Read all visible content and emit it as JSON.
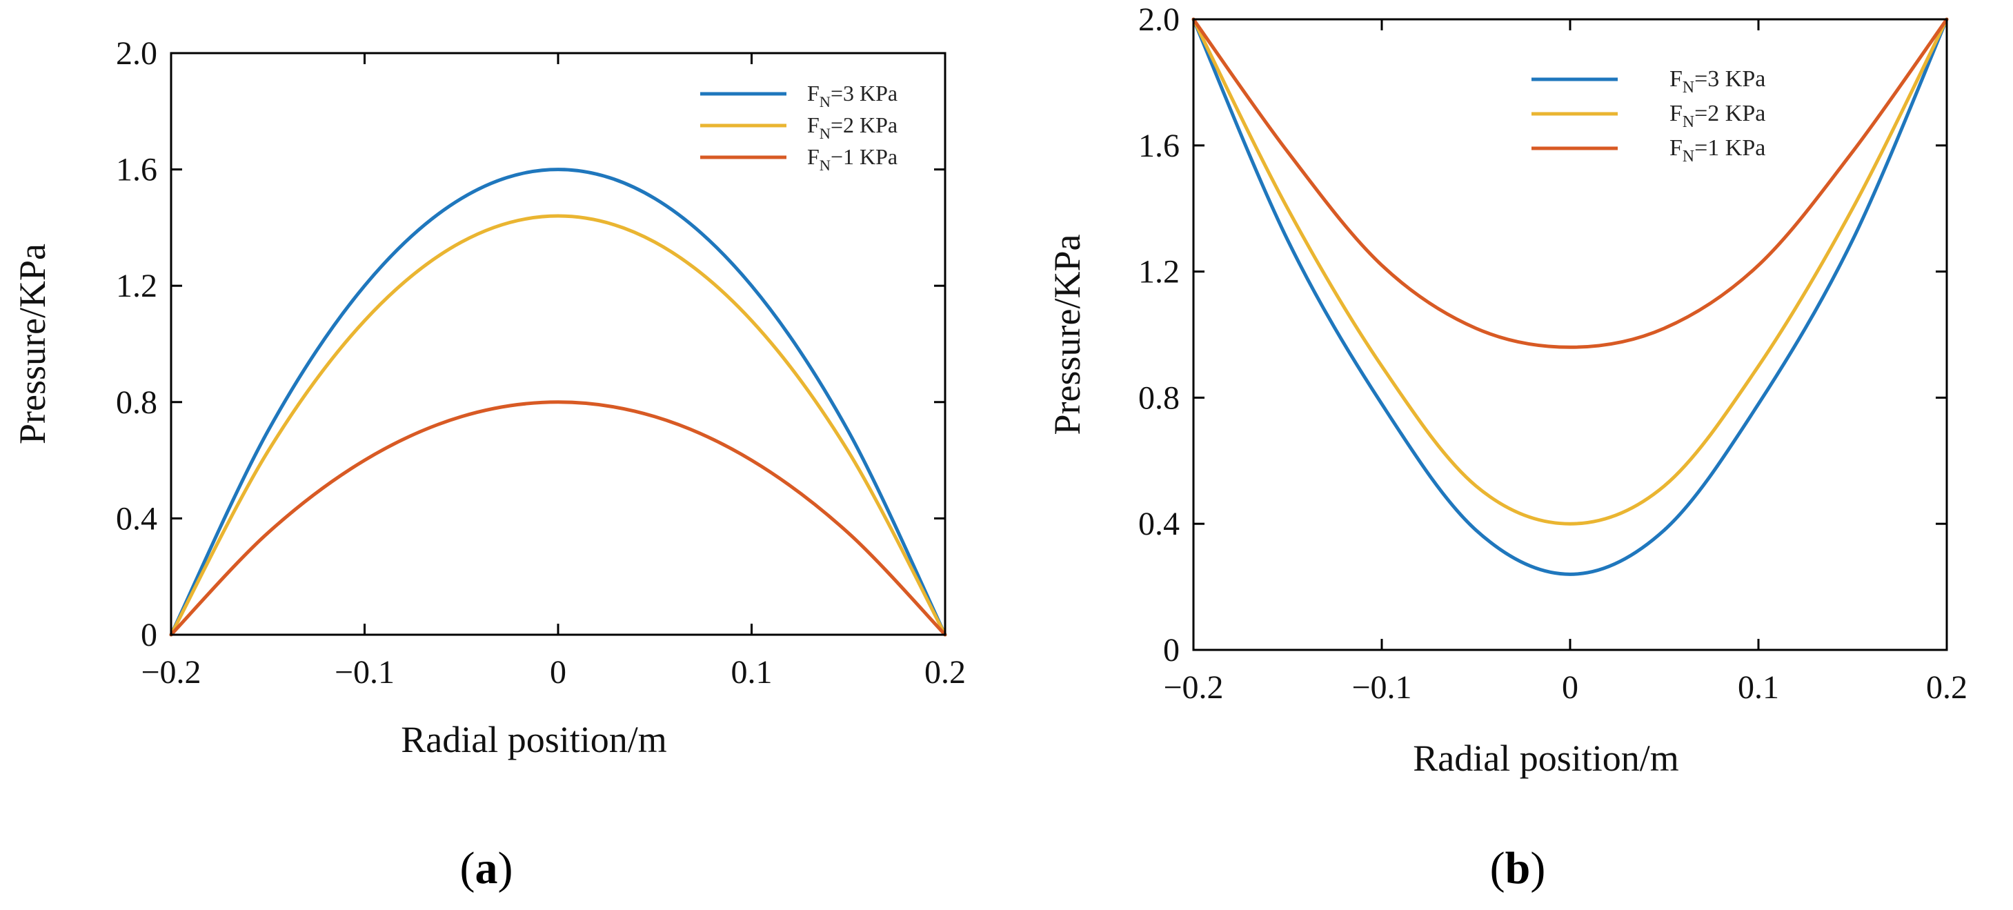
{
  "chart_data": [
    {
      "id": "a",
      "type": "line",
      "panel_label_open": "(",
      "panel_label_letter": "a",
      "panel_label_close": ")",
      "title": "",
      "xlabel": "Radial position/m",
      "ylabel": "Pressure/KPa",
      "xlim": [
        -0.2,
        0.2
      ],
      "ylim": [
        0,
        2.0
      ],
      "xticks": [
        -0.2,
        -0.1,
        0,
        0.1,
        0.2
      ],
      "xtick_labels": [
        "−0.2",
        "−0.1",
        "0",
        "0.1",
        "0.2"
      ],
      "yticks": [
        0,
        0.4,
        0.8,
        1.2,
        1.6,
        2.0
      ],
      "ytick_labels": [
        "0",
        "0.4",
        "0.8",
        "1.2",
        "1.6",
        "2.0"
      ],
      "grid": false,
      "legend_position": "top-right",
      "series": [
        {
          "name_main": "F",
          "name_sub": "N",
          "name_rest": "=3 KPa",
          "color": "#1f77bd",
          "x": [
            -0.2,
            -0.15,
            -0.1,
            -0.05,
            0,
            0.05,
            0.1,
            0.15,
            0.2
          ],
          "y": [
            0,
            0.7,
            1.2,
            1.5,
            1.6,
            1.5,
            1.2,
            0.7,
            0
          ]
        },
        {
          "name_main": "F",
          "name_sub": "N",
          "name_rest": "=2 KPa",
          "color": "#eab531",
          "x": [
            -0.2,
            -0.15,
            -0.1,
            -0.05,
            0,
            0.05,
            0.1,
            0.15,
            0.2
          ],
          "y": [
            0,
            0.63,
            1.08,
            1.35,
            1.44,
            1.35,
            1.08,
            0.63,
            0
          ]
        },
        {
          "name_main": "F",
          "name_sub": "N",
          "name_rest": "−1 KPa",
          "color": "#d85a24",
          "x": [
            -0.2,
            -0.15,
            -0.1,
            -0.05,
            0,
            0.05,
            0.1,
            0.15,
            0.2
          ],
          "y": [
            0,
            0.35,
            0.6,
            0.75,
            0.8,
            0.75,
            0.6,
            0.35,
            0
          ]
        }
      ]
    },
    {
      "id": "b",
      "type": "line",
      "panel_label_open": "(",
      "panel_label_letter": "b",
      "panel_label_close": ")",
      "title": "",
      "xlabel": "Radial position/m",
      "ylabel": "Pressure/KPa",
      "xlim": [
        -0.2,
        0.2
      ],
      "ylim": [
        0,
        2.0
      ],
      "xticks": [
        -0.2,
        -0.1,
        0,
        0.1,
        0.2
      ],
      "xtick_labels": [
        "−0.2",
        "−0.1",
        "0",
        "0.1",
        "0.2"
      ],
      "yticks": [
        0,
        0.4,
        0.8,
        1.2,
        1.6,
        2.0
      ],
      "ytick_labels": [
        "0",
        "0.4",
        "0.8",
        "1.2",
        "1.6",
        "2.0"
      ],
      "grid": false,
      "legend_position": "top-right",
      "series": [
        {
          "name_main": "F",
          "name_sub": "N",
          "name_rest": "=3 KPa",
          "color": "#1f77bd",
          "x": [
            -0.2,
            -0.15,
            -0.1,
            -0.05,
            0,
            0.05,
            0.1,
            0.15,
            0.2
          ],
          "y": [
            2.0,
            1.3,
            0.78,
            0.38,
            0.24,
            0.38,
            0.78,
            1.3,
            2.0
          ]
        },
        {
          "name_main": "F",
          "name_sub": "N",
          "name_rest": "=2 KPa",
          "color": "#eab531",
          "x": [
            -0.2,
            -0.15,
            -0.1,
            -0.05,
            0,
            0.05,
            0.1,
            0.15,
            0.2
          ],
          "y": [
            2.0,
            1.4,
            0.9,
            0.52,
            0.4,
            0.52,
            0.9,
            1.4,
            2.0
          ]
        },
        {
          "name_main": "F",
          "name_sub": "N",
          "name_rest": "=1 KPa",
          "color": "#d85a24",
          "x": [
            -0.2,
            -0.15,
            -0.1,
            -0.05,
            0,
            0.05,
            0.1,
            0.15,
            0.2
          ],
          "y": [
            2.0,
            1.58,
            1.22,
            1.02,
            0.96,
            1.02,
            1.22,
            1.58,
            2.0
          ]
        }
      ]
    }
  ]
}
